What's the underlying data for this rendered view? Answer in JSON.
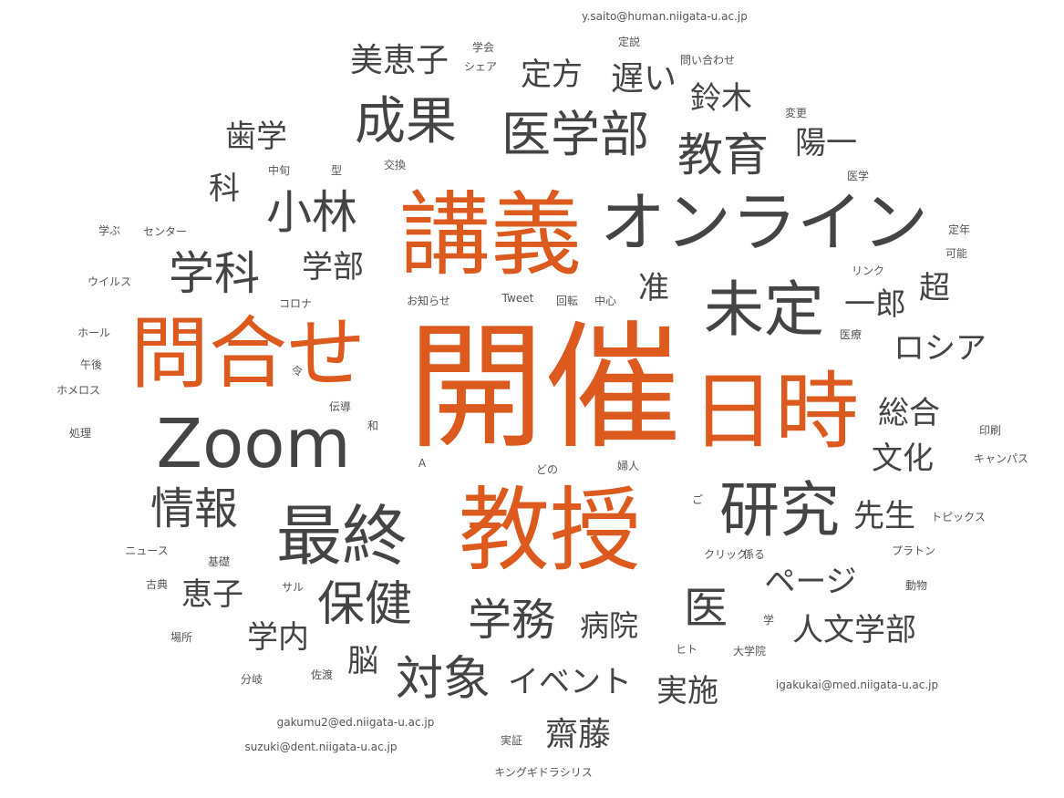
{
  "title": "",
  "colors": {
    "highlight": "#dd5a1e",
    "dark": "#444444",
    "light": "#555555"
  },
  "words": [
    {
      "text": "開催",
      "group": "hl"
    },
    {
      "text": "講義",
      "group": "hl"
    },
    {
      "text": "問合せ",
      "group": "hl"
    },
    {
      "text": "日時",
      "group": "hl"
    },
    {
      "text": "教授",
      "group": "hl"
    },
    {
      "text": "オンライン",
      "group": "dk"
    },
    {
      "text": "Zoom",
      "group": "dk"
    },
    {
      "text": "未定",
      "group": "dk"
    },
    {
      "text": "最終",
      "group": "dk"
    },
    {
      "text": "研究",
      "group": "dk"
    },
    {
      "text": "成果",
      "group": "dk"
    },
    {
      "text": "医学部",
      "group": "dk"
    },
    {
      "text": "教育",
      "group": "dk"
    },
    {
      "text": "小林",
      "group": "dk"
    },
    {
      "text": "学科",
      "group": "dk"
    },
    {
      "text": "保健",
      "group": "dk"
    },
    {
      "text": "学務",
      "group": "dk"
    },
    {
      "text": "対象",
      "group": "dk"
    },
    {
      "text": "医",
      "group": "dk"
    },
    {
      "text": "情報",
      "group": "dk"
    },
    {
      "text": "美恵子",
      "group": "dk"
    },
    {
      "text": "遅い",
      "group": "dk"
    },
    {
      "text": "定方",
      "group": "dk"
    },
    {
      "text": "鈴木",
      "group": "dk"
    },
    {
      "text": "歯学",
      "group": "dk"
    },
    {
      "text": "陽一",
      "group": "dk"
    },
    {
      "text": "科",
      "group": "dk"
    },
    {
      "text": "学部",
      "group": "dk"
    },
    {
      "text": "准",
      "group": "dk"
    },
    {
      "text": "一郎",
      "group": "dk"
    },
    {
      "text": "超",
      "group": "dk"
    },
    {
      "text": "ロシア",
      "group": "dk"
    },
    {
      "text": "総合",
      "group": "dk"
    },
    {
      "text": "文化",
      "group": "dk"
    },
    {
      "text": "先生",
      "group": "dk"
    },
    {
      "text": "ページ",
      "group": "dk"
    },
    {
      "text": "人文学部",
      "group": "dk"
    },
    {
      "text": "恵子",
      "group": "dk"
    },
    {
      "text": "学内",
      "group": "dk"
    },
    {
      "text": "脳",
      "group": "dk"
    },
    {
      "text": "イベント",
      "group": "dk"
    },
    {
      "text": "病院",
      "group": "dk"
    },
    {
      "text": "実施",
      "group": "dk"
    },
    {
      "text": "齋藤",
      "group": "dk"
    },
    {
      "text": "y.saito@human.niigata-u.ac.jp",
      "group": "lt"
    },
    {
      "text": "学会",
      "group": "lt"
    },
    {
      "text": "シェア",
      "group": "lt"
    },
    {
      "text": "定説",
      "group": "lt"
    },
    {
      "text": "問い合わせ",
      "group": "lt"
    },
    {
      "text": "変更",
      "group": "lt"
    },
    {
      "text": "中旬",
      "group": "lt"
    },
    {
      "text": "型",
      "group": "lt"
    },
    {
      "text": "交換",
      "group": "lt"
    },
    {
      "text": "医学",
      "group": "lt"
    },
    {
      "text": "学ぶ",
      "group": "lt"
    },
    {
      "text": "センター",
      "group": "lt"
    },
    {
      "text": "定年",
      "group": "lt"
    },
    {
      "text": "可能",
      "group": "lt"
    },
    {
      "text": "ウイルス",
      "group": "lt"
    },
    {
      "text": "リンク",
      "group": "lt"
    },
    {
      "text": "コロナ",
      "group": "lt"
    },
    {
      "text": "お知らせ",
      "group": "lt"
    },
    {
      "text": "Tweet",
      "group": "lt"
    },
    {
      "text": "回転",
      "group": "lt"
    },
    {
      "text": "中心",
      "group": "lt"
    },
    {
      "text": "ホール",
      "group": "lt"
    },
    {
      "text": "医療",
      "group": "lt"
    },
    {
      "text": "午後",
      "group": "lt"
    },
    {
      "text": "令",
      "group": "lt"
    },
    {
      "text": "ホメロス",
      "group": "lt"
    },
    {
      "text": "伝導",
      "group": "lt"
    },
    {
      "text": "和",
      "group": "lt"
    },
    {
      "text": "処理",
      "group": "lt"
    },
    {
      "text": "印刷",
      "group": "lt"
    },
    {
      "text": "A",
      "group": "lt"
    },
    {
      "text": "どの",
      "group": "lt"
    },
    {
      "text": "婦人",
      "group": "lt"
    },
    {
      "text": "キャンパス",
      "group": "lt"
    },
    {
      "text": "ご",
      "group": "lt"
    },
    {
      "text": "トピックス",
      "group": "lt"
    },
    {
      "text": "ニュース",
      "group": "lt"
    },
    {
      "text": "基礎",
      "group": "lt"
    },
    {
      "text": "クリック",
      "group": "lt"
    },
    {
      "text": "係る",
      "group": "lt"
    },
    {
      "text": "プラトン",
      "group": "lt"
    },
    {
      "text": "古典",
      "group": "lt"
    },
    {
      "text": "サル",
      "group": "lt"
    },
    {
      "text": "動物",
      "group": "lt"
    },
    {
      "text": "学",
      "group": "lt"
    },
    {
      "text": "場所",
      "group": "lt"
    },
    {
      "text": "ヒト",
      "group": "lt"
    },
    {
      "text": "大学院",
      "group": "lt"
    },
    {
      "text": "分岐",
      "group": "lt"
    },
    {
      "text": "佐渡",
      "group": "lt"
    },
    {
      "text": "igakukai@med.niigata-u.ac.jp",
      "group": "lt"
    },
    {
      "text": "gakumu2@ed.niigata-u.ac.jp",
      "group": "lt"
    },
    {
      "text": "実証",
      "group": "lt"
    },
    {
      "text": "suzuki@dent.niigata-u.ac.jp",
      "group": "lt"
    },
    {
      "text": "キングギドラシリス",
      "group": "lt"
    }
  ]
}
